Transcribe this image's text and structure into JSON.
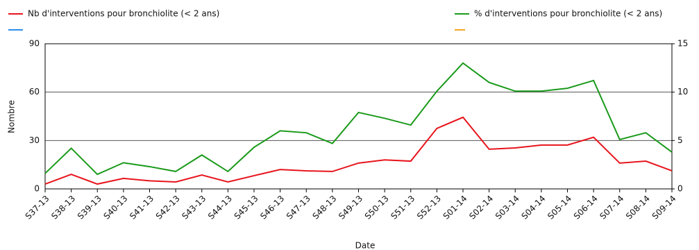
{
  "chart_data": {
    "type": "line",
    "x_label": "Date",
    "y_label": "Nombre",
    "categories": [
      "S37-13",
      "S38-13",
      "S39-13",
      "S40-13",
      "S41-13",
      "S42-13",
      "S43-13",
      "S44-13",
      "S45-13",
      "S46-13",
      "S47-13",
      "S48-13",
      "S49-13",
      "S50-13",
      "S51-13",
      "S52-13",
      "S01-14",
      "S02-14",
      "S03-14",
      "S04-14",
      "S05-14",
      "S06-14",
      "S07-14",
      "S08-14",
      "S09-14"
    ],
    "series": [
      {
        "name": "Nb d'interventions pour bronchiolite (< 2 ans)",
        "color": "#e8141c",
        "axis": "y",
        "values": [
          3,
          9,
          3,
          6.5,
          5,
          4.3,
          8.6,
          4.3,
          8.2,
          12,
          11.2,
          10.8,
          16,
          18,
          17.2,
          37.5,
          44.4,
          24.6,
          25.4,
          27.2,
          27.2,
          32,
          16,
          17.2,
          11.2
        ]
      },
      {
        "name": "%  d'interventions pour bronchiolite (< 2 ans)",
        "color": "#1a9a1a",
        "axis": "y2",
        "values": [
          1.6,
          4.2,
          1.5,
          2.7,
          2.3,
          1.8,
          3.5,
          1.8,
          4.3,
          6.0,
          5.8,
          4.7,
          7.9,
          7.3,
          6.6,
          10.1,
          13.0,
          11.0,
          10.1,
          10.1,
          10.4,
          11.2,
          5.1,
          5.8,
          3.8
        ]
      }
    ],
    "ylim": [
      0,
      90
    ],
    "yticks": [
      0,
      30,
      60,
      90
    ],
    "y2lim": [
      0,
      15
    ],
    "y2ticks": [
      0,
      5,
      10,
      15
    ],
    "grid": true
  }
}
